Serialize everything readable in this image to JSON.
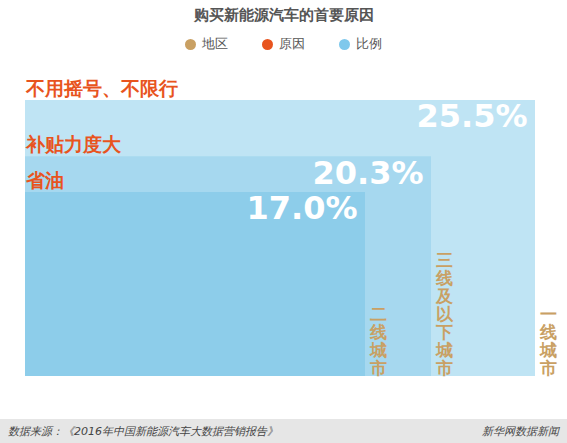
{
  "chart_data": {
    "type": "bar",
    "title": "购买新能源汽车的首要原因",
    "categories": [
      "不用摇号、不限行",
      "补贴力度大",
      "省油"
    ],
    "regions": [
      "一线城市",
      "三线及以下城市",
      "二线城市"
    ],
    "values": [
      25.5,
      20.3,
      17.0
    ],
    "value_labels": [
      "25.5%",
      "20.3%",
      "17.0%"
    ],
    "colors": [
      "#bfe4f4",
      "#a6d8ef",
      "#8dcdea"
    ],
    "data_labels": true,
    "tick_labels": false,
    "xlim": [
      0,
      25.5
    ],
    "ylim": [
      0,
      25.5
    ],
    "legend": "top",
    "legend_items": [
      {
        "name": "地区",
        "color": "#c9a063"
      },
      {
        "name": "原因",
        "color": "#e8541e"
      },
      {
        "name": "比例",
        "color": "#7ec8ec"
      }
    ],
    "source": "数据来源：《2016年中国新能源汽车大数据营销报告》",
    "credit": "新华网数据新闻"
  }
}
